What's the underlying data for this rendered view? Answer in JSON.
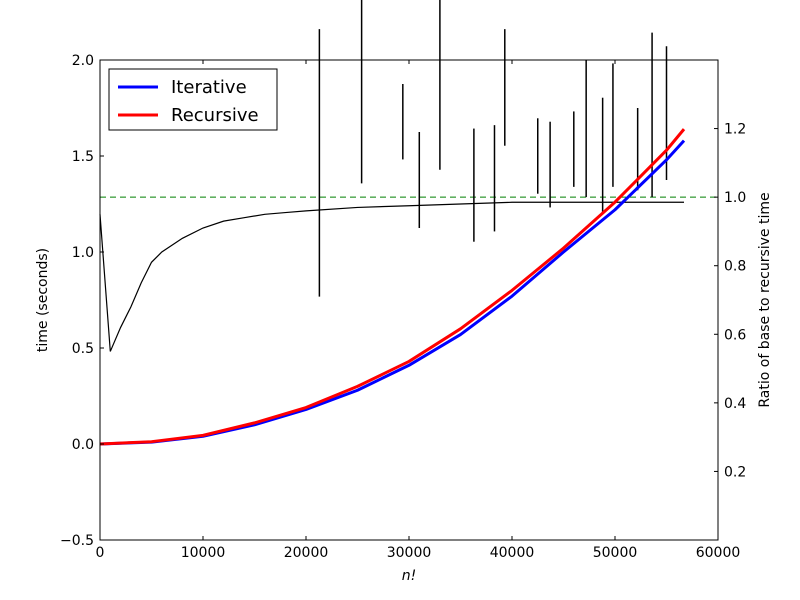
{
  "chart_data": {
    "type": "line",
    "title": "",
    "xlabel": "n!",
    "ylabel": "time (seconds)",
    "y2label": "Ratio of base to recursive time",
    "xlim": [
      0,
      60000
    ],
    "ylim": [
      -0.5,
      2.0
    ],
    "y2lim": [
      0.0,
      1.4
    ],
    "x_ticks": [
      0,
      10000,
      20000,
      30000,
      40000,
      50000,
      60000
    ],
    "x_tick_labels": [
      "0",
      "10000",
      "20000",
      "30000",
      "40000",
      "50000",
      "60000"
    ],
    "y_ticks": [
      -0.5,
      0.0,
      0.5,
      1.0,
      1.5,
      2.0
    ],
    "y_tick_labels": [
      "−0.5",
      "0.0",
      "0.5",
      "1.0",
      "1.5",
      "2.0"
    ],
    "y2_ticks": [
      0.2,
      0.4,
      0.6,
      0.8,
      1.0,
      1.2
    ],
    "y2_tick_labels": [
      "0.2",
      "0.4",
      "0.6",
      "0.8",
      "1.0",
      "1.2"
    ],
    "legend": {
      "location": "upper-left",
      "entries": [
        {
          "label": "Iterative",
          "color": "#0000ff"
        },
        {
          "label": "Recursive",
          "color": "#ff0000"
        }
      ]
    },
    "series": [
      {
        "name": "Iterative",
        "axis": "left",
        "color": "#0000ff",
        "x": [
          0,
          5000,
          10000,
          15000,
          20000,
          25000,
          30000,
          35000,
          40000,
          45000,
          50000,
          55000,
          56700
        ],
        "y": [
          0.0,
          0.01,
          0.04,
          0.1,
          0.18,
          0.28,
          0.41,
          0.57,
          0.77,
          1.0,
          1.22,
          1.48,
          1.58
        ]
      },
      {
        "name": "Recursive",
        "axis": "left",
        "color": "#ff0000",
        "x": [
          0,
          5000,
          10000,
          15000,
          20000,
          25000,
          30000,
          35000,
          40000,
          45000,
          50000,
          55000,
          56700
        ],
        "y": [
          0.0,
          0.012,
          0.045,
          0.11,
          0.19,
          0.3,
          0.43,
          0.6,
          0.8,
          1.02,
          1.26,
          1.53,
          1.64
        ]
      },
      {
        "name": "Ratio of base to recursive time",
        "axis": "right",
        "color": "#000000",
        "x": [
          0,
          1000,
          2000,
          3000,
          4000,
          5000,
          6000,
          7000,
          8000,
          10000,
          12000,
          14000,
          16000,
          18000,
          20000,
          25000,
          30000,
          35000,
          40000,
          45000,
          50000,
          55000,
          56700
        ],
        "y": [
          0.95,
          0.55,
          0.62,
          0.68,
          0.75,
          0.81,
          0.84,
          0.86,
          0.88,
          0.91,
          0.93,
          0.94,
          0.95,
          0.955,
          0.96,
          0.97,
          0.975,
          0.98,
          0.985,
          0.985,
          0.985,
          0.985,
          0.985
        ]
      }
    ],
    "reference_line": {
      "axis": "right",
      "y": 1.0,
      "style": "dashed",
      "color": "#008000"
    },
    "spikes": [
      {
        "x": 21300,
        "y_min": 0.71,
        "y_max": 1.49
      },
      {
        "x": 25400,
        "y_min": 1.04,
        "y_max": 1.85
      },
      {
        "x": 29400,
        "y_min": 1.11,
        "y_max": 1.33
      },
      {
        "x": 31000,
        "y_min": 0.91,
        "y_max": 1.19
      },
      {
        "x": 33000,
        "y_min": 1.08,
        "y_max": 1.58
      },
      {
        "x": 36300,
        "y_min": 0.87,
        "y_max": 1.2
      },
      {
        "x": 38300,
        "y_min": 0.9,
        "y_max": 1.21
      },
      {
        "x": 39300,
        "y_min": 1.15,
        "y_max": 1.49
      },
      {
        "x": 42500,
        "y_min": 1.01,
        "y_max": 1.23
      },
      {
        "x": 43700,
        "y_min": 0.97,
        "y_max": 1.22
      },
      {
        "x": 46000,
        "y_min": 1.03,
        "y_max": 1.25
      },
      {
        "x": 47200,
        "y_min": 1.0,
        "y_max": 1.4
      },
      {
        "x": 48800,
        "y_min": 0.95,
        "y_max": 1.29
      },
      {
        "x": 49800,
        "y_min": 1.03,
        "y_max": 1.39
      },
      {
        "x": 52200,
        "y_min": 1.02,
        "y_max": 1.26
      },
      {
        "x": 53600,
        "y_min": 1.0,
        "y_max": 1.48
      },
      {
        "x": 55000,
        "y_min": 1.05,
        "y_max": 1.44
      }
    ]
  }
}
